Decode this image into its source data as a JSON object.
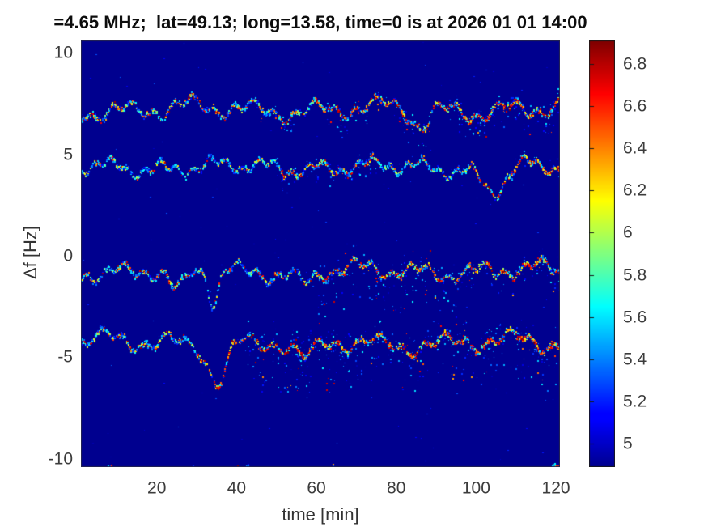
{
  "chart_data": {
    "type": "heatmap",
    "title": "=4.65 MHz;  lat=49.13; long=13.58, time=0 is at 2026 01 01 14:00",
    "xlabel": "time [min]",
    "ylabel": "Δf [Hz]",
    "xlim": [
      1,
      121
    ],
    "ylim": [
      -10.4,
      10.6
    ],
    "xticks": [
      20,
      40,
      60,
      80,
      100,
      120
    ],
    "yticks": [
      10,
      5,
      0,
      -5,
      -10
    ],
    "grid": false,
    "colormap": "jet",
    "background_value": 4.89,
    "colorbar": {
      "position": "right",
      "min": 4.89,
      "max": 6.91,
      "ticks": [
        6.8,
        6.6,
        6.4,
        6.2,
        6,
        5.8,
        5.6,
        5.4,
        5.2,
        5
      ]
    },
    "description": "Doppler shift spectrogram: wavy echo traces near Δf = +7.3, +4.4, -0.7, -4.3 Hz and a faint trace clipped at the bottom edge near -10.6 Hz, drawn in jet colors on a dark blue background",
    "traces": [
      {
        "name": "echo-trace-1",
        "df": 7.25,
        "amp": 0.5,
        "period": 16,
        "jitter": 0.1,
        "seed": 11,
        "segments": [
          [
            1,
            121
          ]
        ],
        "dips": [
          {
            "t": 86,
            "depth": 0.8,
            "width": 3
          }
        ],
        "heat": [
          [
            1,
            60,
            0.32
          ],
          [
            60,
            121,
            0.5
          ]
        ],
        "speckle": [
          [
            45,
            55,
            0.9,
            0.3
          ],
          [
            62,
            90,
            1.0,
            0.4
          ],
          [
            93,
            121,
            1.1,
            0.45
          ]
        ]
      },
      {
        "name": "echo-trace-2",
        "df": 4.4,
        "amp": 0.42,
        "period": 13,
        "jitter": 0.09,
        "seed": 22,
        "segments": [
          [
            1,
            121
          ]
        ],
        "dips": [
          {
            "t": 104,
            "depth": 1.15,
            "width": 4
          }
        ],
        "heat": [
          [
            1,
            50,
            0.12
          ],
          [
            50,
            75,
            0.28
          ],
          [
            98,
            121,
            0.5
          ]
        ],
        "speckle": [
          [
            50,
            75,
            0.8,
            0.3
          ],
          [
            108,
            121,
            0.5,
            0.25
          ]
        ]
      },
      {
        "name": "echo-trace-3",
        "df": -0.7,
        "amp": 0.45,
        "period": 15,
        "jitter": 0.1,
        "seed": 33,
        "segments": [
          [
            1,
            121
          ]
        ],
        "dips": [
          {
            "t": 25,
            "depth": 1.1,
            "width": 3
          },
          {
            "t": 34,
            "depth": 1.5,
            "width": 1.6
          },
          {
            "t": 57,
            "depth": 0.6,
            "width": 3
          }
        ],
        "heat": [
          [
            1,
            20,
            0.22
          ],
          [
            20,
            60,
            0.18
          ],
          [
            60,
            95,
            0.45
          ],
          [
            95,
            121,
            0.45
          ]
        ],
        "speckle": [
          [
            60,
            95,
            1.9,
            0.55
          ],
          [
            95,
            121,
            1.0,
            0.35
          ]
        ]
      },
      {
        "name": "echo-trace-4",
        "df": -4.25,
        "amp": 0.5,
        "period": 17,
        "jitter": 0.1,
        "seed": 44,
        "segments": [
          [
            1,
            121
          ]
        ],
        "dips": [
          {
            "t": 35,
            "depth": 1.7,
            "width": 3
          },
          {
            "t": 57,
            "depth": 1.0,
            "width": 3.5
          }
        ],
        "heat": [
          [
            1,
            30,
            0.18
          ],
          [
            30,
            45,
            0.4
          ],
          [
            45,
            121,
            0.55
          ]
        ],
        "speckle": [
          [
            42,
            121,
            2.1,
            0.6
          ]
        ]
      },
      {
        "name": "echo-trace-5",
        "df": -10.62,
        "amp": 0.3,
        "period": 11,
        "jitter": 0.08,
        "seed": 55,
        "segments": [
          [
            3,
            9
          ],
          [
            25,
            34
          ],
          [
            40,
            43
          ],
          [
            60,
            68
          ],
          [
            76,
            80
          ],
          [
            118,
            121
          ]
        ],
        "dips": [],
        "heat": [
          [
            60,
            68,
            0.45
          ]
        ],
        "speckle": []
      }
    ]
  }
}
